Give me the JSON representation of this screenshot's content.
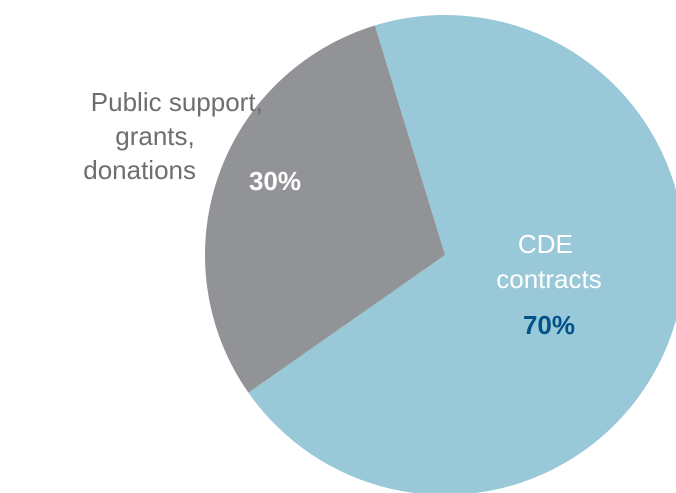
{
  "chart_data": {
    "type": "pie",
    "slices": [
      {
        "label_lines": [
          "CDE",
          "contracts"
        ],
        "value": 70,
        "value_label": "70%",
        "color": "#99c8d8",
        "label_color": "#ffffff",
        "value_label_color": "#005288",
        "label_position": "inside"
      },
      {
        "label_lines": [
          "Public support,",
          "grants,",
          "donations"
        ],
        "value": 30,
        "value_label": "30%",
        "color": "#929397",
        "label_color": "#6d6e71",
        "value_label_color": "#ffffff",
        "label_position": "outside-left"
      }
    ],
    "start_angle_deg": -17,
    "direction": "clockwise",
    "legend": "none",
    "title": ""
  }
}
